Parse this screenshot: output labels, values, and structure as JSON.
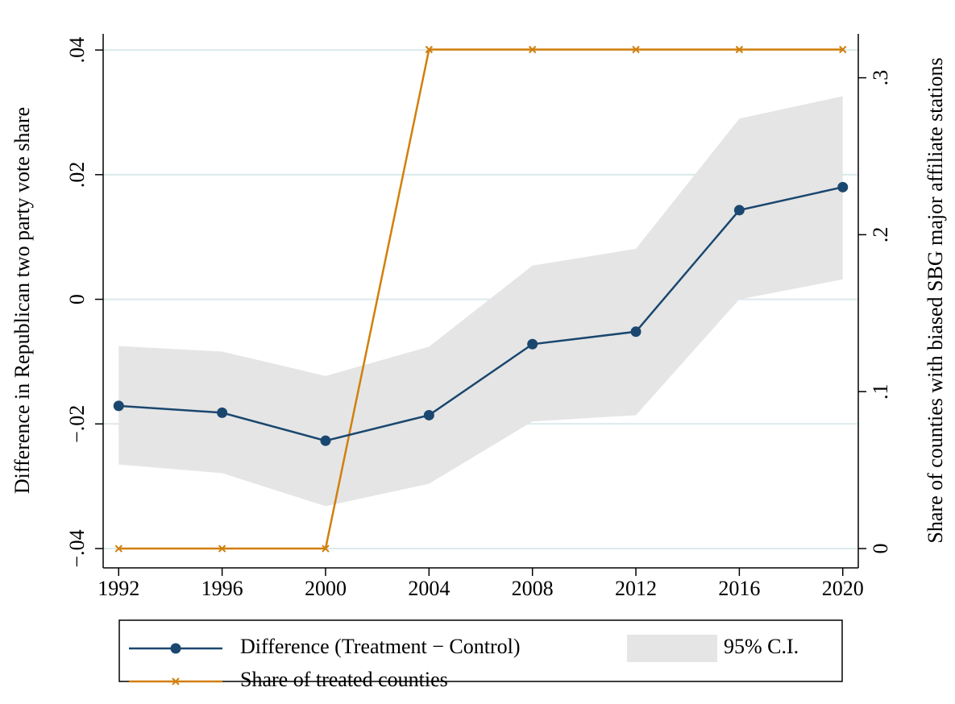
{
  "chart_data": {
    "type": "line",
    "y_label": "Difference in Republican two party vote share",
    "y2_label": "Share of counties with biased SBG major affiliate stations",
    "x": [
      1992,
      1996,
      2000,
      2004,
      2008,
      2012,
      2016,
      2020
    ],
    "xlim": [
      1991.4,
      2020.6
    ],
    "xticks": [
      1992,
      1996,
      2000,
      2004,
      2008,
      2012,
      2016,
      2020
    ],
    "ylim": [
      -0.0431,
      0.0426
    ],
    "yticks": [
      {
        "value": -0.04,
        "label": "−.04"
      },
      {
        "value": -0.02,
        "label": "−.02"
      },
      0,
      {
        "value": 0.02,
        "label": ".02"
      },
      {
        "value": 0.04,
        "label": ".04"
      }
    ],
    "y2lim": [
      -0.0123,
      0.328
    ],
    "y2ticks": [
      0,
      {
        "value": 0.1,
        "label": ".1"
      },
      {
        "value": 0.2,
        "label": ".2"
      },
      {
        "value": 0.3,
        "label": ".3"
      }
    ],
    "grid": true,
    "ci": {
      "name": "95% C.I.",
      "color": "#e5e5e5",
      "lower": [
        -0.0265,
        -0.0279,
        -0.0332,
        -0.0296,
        -0.0196,
        -0.0186,
        0.0,
        0.0032
      ],
      "upper": [
        -0.0075,
        -0.0084,
        -0.0123,
        -0.0076,
        0.0054,
        0.0081,
        0.029,
        0.0326
      ]
    },
    "series": [
      {
        "name": "Difference (Treatment − Control)",
        "color": "#1a476f",
        "marker": "circle",
        "values": [
          -0.0171,
          -0.0182,
          -0.0227,
          -0.0186,
          -0.0072,
          -0.0052,
          0.0143,
          0.018
        ]
      },
      {
        "name": "Share of treated counties",
        "color": "#d17f0c",
        "marker": "x",
        "axis": "y2",
        "values": [
          0,
          0,
          0,
          0.318,
          0.318,
          0.318,
          0.318,
          0.318
        ]
      }
    ]
  }
}
